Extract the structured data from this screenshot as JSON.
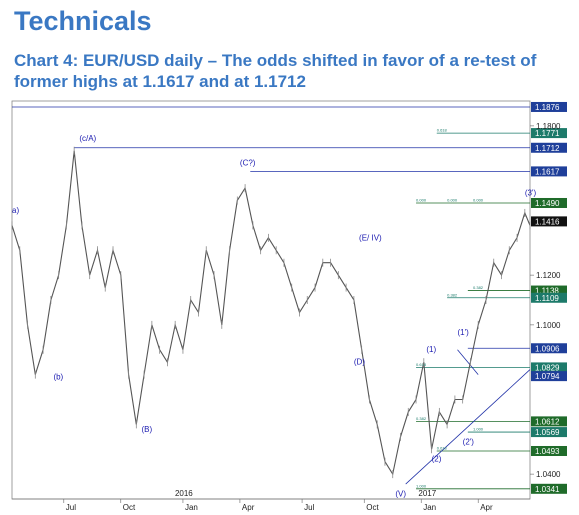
{
  "header": {
    "heading": "Technicals",
    "subtitle": "Chart 4: EUR/USD daily – The odds shifted in favor of a re-test of former highs at 1.1617 and at 1.1712"
  },
  "chart_data": {
    "type": "line",
    "ylim": [
      1.03,
      1.19
    ],
    "yticks": [
      {
        "value": 1.18,
        "label": "1.1800"
      },
      {
        "value": 1.12,
        "label": "1.1200"
      },
      {
        "value": 1.1,
        "label": "1.1000"
      },
      {
        "value": 1.04,
        "label": "1.0400"
      }
    ],
    "xticks": [
      {
        "label": "Jul",
        "x": 0.1
      },
      {
        "label": "Oct",
        "x": 0.21
      },
      {
        "label": "Jan",
        "x": 0.33
      },
      {
        "label": "Apr",
        "x": 0.44
      },
      {
        "label": "Jul",
        "x": 0.56
      },
      {
        "label": "Oct",
        "x": 0.68
      },
      {
        "label": "Jan",
        "x": 0.79
      },
      {
        "label": "Apr",
        "x": 0.9
      }
    ],
    "year_labels": [
      {
        "label": "2016",
        "x": 0.33
      },
      {
        "label": "2017",
        "x": 0.8
      }
    ],
    "price_levels": [
      {
        "value": 1.1876,
        "label": "1.1876",
        "style": "blue",
        "x_from": 0.0
      },
      {
        "value": 1.1771,
        "label": "1.1771",
        "style": "teal",
        "x_from": 0.82
      },
      {
        "value": 1.1712,
        "label": "1.1712",
        "style": "blue",
        "x_from": 0.12
      },
      {
        "value": 1.1617,
        "label": "1.1617",
        "style": "blue",
        "x_from": 0.46
      },
      {
        "value": 1.149,
        "label": "1.1490",
        "style": "green",
        "x_from": 0.78
      },
      {
        "value": 1.1416,
        "label": "1.1416",
        "style": "black",
        "x_from": 1.0
      },
      {
        "value": 1.1138,
        "label": "1.1138",
        "style": "green",
        "x_from": 0.88
      },
      {
        "value": 1.1109,
        "label": "1.1109",
        "style": "teal",
        "x_from": 0.84
      },
      {
        "value": 1.0906,
        "label": "1.0906",
        "style": "blue",
        "x_from": 0.88
      },
      {
        "value": 1.0829,
        "label": "1.0829",
        "style": "teal",
        "x_from": 0.78
      },
      {
        "value": 1.0794,
        "label": "1.0794",
        "style": "blue",
        "x_from": 1.0
      },
      {
        "value": 1.0612,
        "label": "1.0612",
        "style": "green",
        "x_from": 0.78
      },
      {
        "value": 1.0569,
        "label": "1.0569",
        "style": "teal",
        "x_from": 0.88
      },
      {
        "value": 1.0493,
        "label": "1.0493",
        "style": "green",
        "x_from": 0.82
      },
      {
        "value": 1.0341,
        "label": "1.0341",
        "style": "green",
        "x_from": 0.78
      }
    ],
    "small_labels": [
      {
        "text": "0.618",
        "x": 0.82,
        "y": 1.1771
      },
      {
        "text": "0.000",
        "x": 0.78,
        "y": 1.149
      },
      {
        "text": "0.000",
        "x": 0.84,
        "y": 1.149
      },
      {
        "text": "0.000",
        "x": 0.89,
        "y": 1.149
      },
      {
        "text": "0.382",
        "x": 0.89,
        "y": 1.1138
      },
      {
        "text": "0.382",
        "x": 0.84,
        "y": 1.1109
      },
      {
        "text": "0.618",
        "x": 0.78,
        "y": 1.0829
      },
      {
        "text": "0.382",
        "x": 0.78,
        "y": 1.0612
      },
      {
        "text": "1.000",
        "x": 0.89,
        "y": 1.0569
      },
      {
        "text": "0.618",
        "x": 0.82,
        "y": 1.0493
      },
      {
        "text": "1.000",
        "x": 0.78,
        "y": 1.0341
      }
    ],
    "wave_labels": [
      {
        "text": "a)",
        "x": 0.0,
        "y": 1.145
      },
      {
        "text": "(c/A)",
        "x": 0.13,
        "y": 1.174
      },
      {
        "text": "(b)",
        "x": 0.08,
        "y": 1.078
      },
      {
        "text": "(B)",
        "x": 0.25,
        "y": 1.057
      },
      {
        "text": "(C?)",
        "x": 0.44,
        "y": 1.164
      },
      {
        "text": "(E/ IV)",
        "x": 0.67,
        "y": 1.134
      },
      {
        "text": "(D)",
        "x": 0.66,
        "y": 1.084
      },
      {
        "text": "(V)",
        "x": 0.74,
        "y": 1.031
      },
      {
        "text": "(1)",
        "x": 0.8,
        "y": 1.089
      },
      {
        "text": "(1')",
        "x": 0.86,
        "y": 1.096
      },
      {
        "text": "(2)",
        "x": 0.81,
        "y": 1.045
      },
      {
        "text": "(2')",
        "x": 0.87,
        "y": 1.052
      },
      {
        "text": "(3')",
        "x": 0.99,
        "y": 1.152
      }
    ],
    "trendlines": [
      {
        "points": [
          [
            0.76,
            1.036
          ],
          [
            1.0,
            1.082
          ]
        ]
      },
      {
        "points": [
          [
            0.86,
            1.09
          ],
          [
            0.9,
            1.08
          ]
        ]
      }
    ],
    "series": [
      {
        "x": [
          0.0,
          0.015,
          0.03,
          0.045,
          0.06,
          0.075,
          0.09,
          0.105,
          0.12,
          0.135,
          0.15,
          0.165,
          0.18,
          0.195,
          0.21,
          0.225,
          0.24,
          0.255,
          0.27,
          0.285,
          0.3,
          0.315,
          0.33,
          0.345,
          0.36,
          0.375,
          0.39,
          0.405,
          0.42,
          0.435,
          0.45,
          0.465,
          0.48,
          0.495,
          0.51,
          0.525,
          0.54,
          0.555,
          0.57,
          0.585,
          0.6,
          0.615,
          0.63,
          0.645,
          0.66,
          0.675,
          0.69,
          0.705,
          0.72,
          0.735,
          0.75,
          0.765,
          0.78,
          0.795,
          0.81,
          0.825,
          0.84,
          0.855,
          0.87,
          0.885,
          0.9,
          0.915,
          0.93,
          0.945,
          0.96,
          0.975,
          0.99,
          1.0
        ],
        "values": [
          1.14,
          1.13,
          1.1,
          1.08,
          1.09,
          1.11,
          1.12,
          1.14,
          1.17,
          1.14,
          1.12,
          1.13,
          1.115,
          1.13,
          1.12,
          1.08,
          1.06,
          1.08,
          1.1,
          1.09,
          1.085,
          1.1,
          1.09,
          1.11,
          1.105,
          1.13,
          1.12,
          1.1,
          1.13,
          1.15,
          1.155,
          1.14,
          1.13,
          1.135,
          1.13,
          1.125,
          1.115,
          1.105,
          1.11,
          1.115,
          1.125,
          1.125,
          1.12,
          1.115,
          1.11,
          1.09,
          1.07,
          1.06,
          1.045,
          1.04,
          1.055,
          1.065,
          1.07,
          1.085,
          1.05,
          1.065,
          1.06,
          1.07,
          1.07,
          1.085,
          1.1,
          1.11,
          1.125,
          1.12,
          1.13,
          1.135,
          1.145,
          1.14
        ]
      }
    ]
  }
}
